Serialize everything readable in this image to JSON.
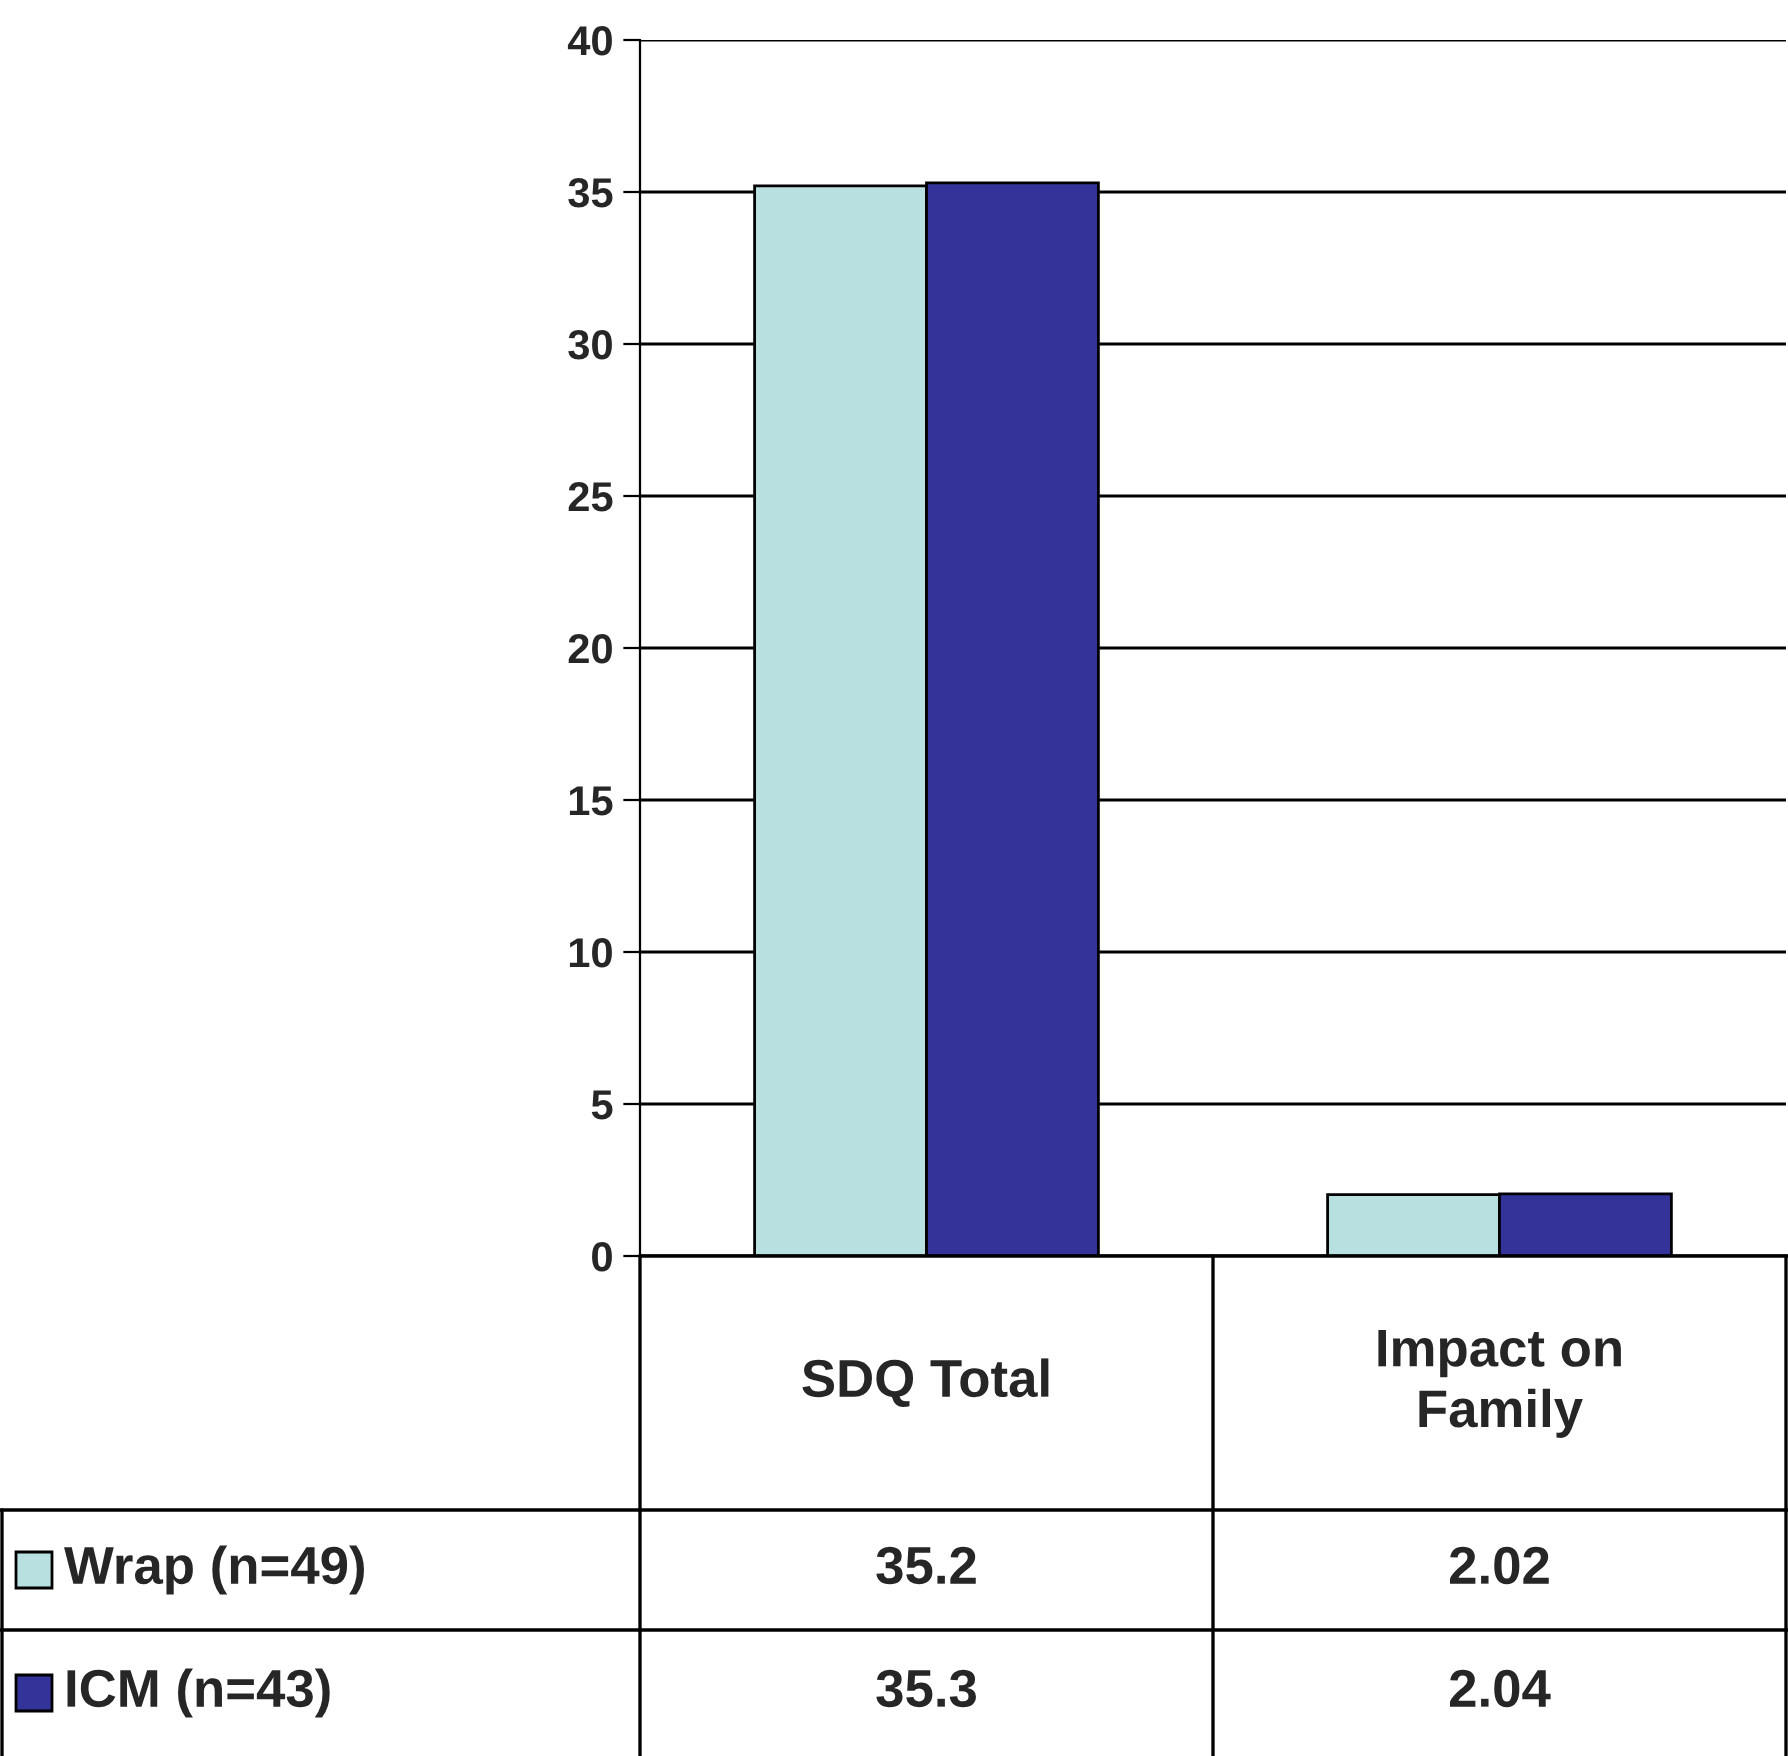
{
  "chart_data": {
    "type": "bar",
    "categories": [
      "SDQ Total",
      "Impact on Family"
    ],
    "series": [
      {
        "name": "Wrap (n=49)",
        "color": "#b8e0e0",
        "values": [
          35.2,
          2.02
        ]
      },
      {
        "name": "ICM (n=43)",
        "color": "#333399",
        "values": [
          35.3,
          2.04
        ]
      }
    ],
    "ylim": [
      0,
      40
    ],
    "yticks": [
      0,
      5,
      10,
      15,
      20,
      25,
      30,
      35,
      40
    ],
    "grid": "y",
    "legend": "bottom",
    "data_labels": true
  }
}
